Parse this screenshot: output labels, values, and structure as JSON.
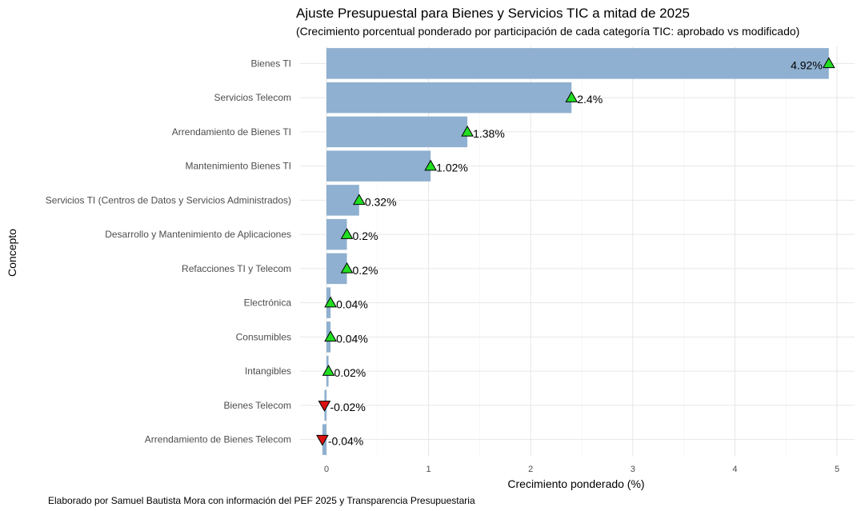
{
  "chart_data": {
    "type": "bar",
    "orientation": "horizontal",
    "title": "Ajuste Presupuestal para Bienes y Servicios TIC a mitad de 2025",
    "subtitle": "(Crecimiento porcentual ponderado por participación de cada categoría TIC: aprobado vs modificado)",
    "xlabel": "Crecimiento ponderado (%)",
    "ylabel": "Concepto",
    "caption": "Elaborado por Samuel Bautista Mora con información del PEF 2025 y Transparencia Presupuestaria",
    "xlim": [
      -0.1,
      5.1
    ],
    "xticks": [
      0,
      1,
      2,
      3,
      4,
      5
    ],
    "grid": true,
    "categories": [
      "Bienes TI",
      "Servicios Telecom",
      "Arrendamiento de Bienes TI",
      "Mantenimiento Bienes TI",
      "Servicios TI (Centros de Datos y Servicios Administrados)",
      "Desarrollo y Mantenimiento de Aplicaciones",
      "Refacciones TI y Telecom",
      "Electrónica",
      "Consumibles",
      "Intangibles",
      "Bienes Telecom",
      "Arrendamiento de Bienes Telecom"
    ],
    "values": [
      4.92,
      2.4,
      1.38,
      1.02,
      0.32,
      0.2,
      0.2,
      0.04,
      0.04,
      0.02,
      -0.02,
      -0.04
    ],
    "labels": [
      "4.92%",
      "2.4%",
      "1.38%",
      "1.02%",
      "0.32%",
      "0.2%",
      "0.2%",
      "0.04%",
      "0.04%",
      "0.02%",
      "-0.02%",
      "-0.04%"
    ],
    "colors": {
      "bar": "#8fb0d0",
      "up_marker": "#22dd22",
      "down_marker": "#dd1111",
      "marker_stroke": "#000000"
    }
  }
}
